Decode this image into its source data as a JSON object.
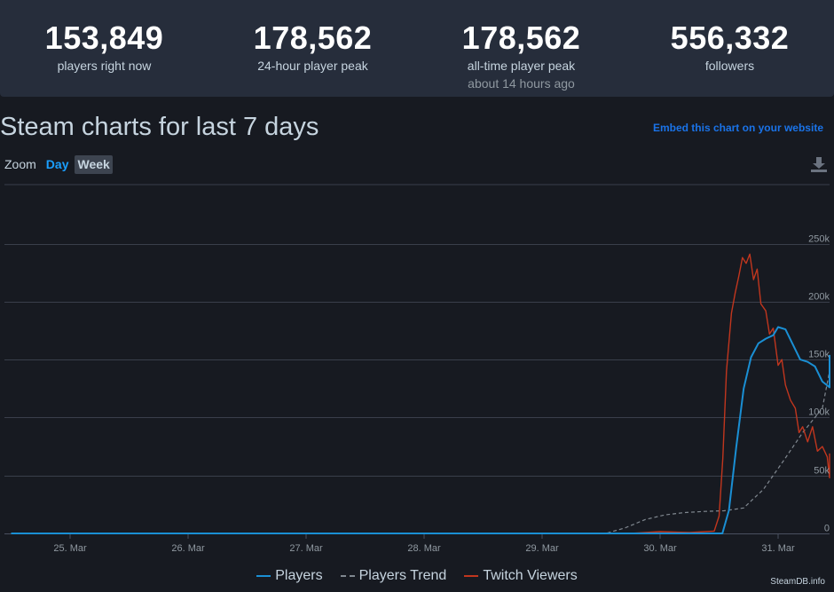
{
  "stats": [
    {
      "value": "153,849",
      "label": "players right now",
      "sub": ""
    },
    {
      "value": "178,562",
      "label": "24-hour player peak",
      "sub": ""
    },
    {
      "value": "178,562",
      "label": "all-time player peak",
      "sub": "about 14 hours ago"
    },
    {
      "value": "556,332",
      "label": "followers",
      "sub": ""
    }
  ],
  "chart_title": "Steam charts for last 7 days",
  "embed_link": "Embed this chart on your website",
  "zoom": {
    "label": "Zoom",
    "day": "Day",
    "week": "Week",
    "selected": "Week"
  },
  "credit": "SteamDB.info",
  "colors": {
    "players": "#1a8fd4",
    "trend": "#808890",
    "twitch": "#c1361e",
    "gridline": "#3a3f4b",
    "axis_text": "#8f98a0"
  },
  "chart_data": {
    "type": "line",
    "x_type": "datetime",
    "x_ticks": [
      "25. Mar",
      "26. Mar",
      "27. Mar",
      "28. Mar",
      "29. Mar",
      "30. Mar",
      "31. Mar"
    ],
    "y_ticks": [
      "0",
      "50k",
      "100k",
      "150k",
      "200k",
      "250k"
    ],
    "ylim": [
      0,
      300000
    ],
    "grid": true,
    "legend_position": "bottom",
    "series": [
      {
        "name": "Players",
        "points": [
          [
            "2024-03-24 12:00",
            0
          ],
          [
            "2024-03-30 12:00",
            0
          ],
          [
            "2024-03-30 12:40",
            0
          ],
          [
            "2024-03-30 14:00",
            20000
          ],
          [
            "2024-03-30 15:30",
            75000
          ],
          [
            "2024-03-30 17:00",
            125000
          ],
          [
            "2024-03-30 18:30",
            152000
          ],
          [
            "2024-03-30 20:00",
            164000
          ],
          [
            "2024-03-30 21:30",
            168000
          ],
          [
            "2024-03-30 23:00",
            171000
          ],
          [
            "2024-03-31 00:00",
            178000
          ],
          [
            "2024-03-31 01:30",
            176000
          ],
          [
            "2024-03-31 03:00",
            163000
          ],
          [
            "2024-03-31 04:30",
            150000
          ],
          [
            "2024-03-31 06:00",
            148000
          ],
          [
            "2024-03-31 07:30",
            144000
          ],
          [
            "2024-03-31 09:00",
            131000
          ],
          [
            "2024-03-31 10:30",
            126000
          ],
          [
            "2024-03-31 12:00",
            133000
          ],
          [
            "2024-03-31 13:30",
            146000
          ],
          [
            "2024-03-31 14:20",
            154000
          ]
        ]
      },
      {
        "name": "Players Trend",
        "points": [
          [
            "2024-03-24 12:00",
            0
          ],
          [
            "2024-03-29 13:00",
            0
          ],
          [
            "2024-03-29 17:00",
            5000
          ],
          [
            "2024-03-29 21:00",
            12000
          ],
          [
            "2024-03-30 01:00",
            16000
          ],
          [
            "2024-03-30 05:00",
            18000
          ],
          [
            "2024-03-30 09:00",
            19000
          ],
          [
            "2024-03-30 13:00",
            19500
          ],
          [
            "2024-03-30 17:00",
            22000
          ],
          [
            "2024-03-30 21:00",
            38000
          ],
          [
            "2024-03-31 01:00",
            62000
          ],
          [
            "2024-03-31 05:00",
            87000
          ],
          [
            "2024-03-31 09:00",
            108000
          ],
          [
            "2024-03-31 14:20",
            140000
          ]
        ]
      },
      {
        "name": "Twitch Viewers",
        "points": [
          [
            "2024-03-24 12:00",
            0
          ],
          [
            "2024-03-29 18:00",
            0
          ],
          [
            "2024-03-30 00:00",
            1500
          ],
          [
            "2024-03-30 06:00",
            800
          ],
          [
            "2024-03-30 11:00",
            2000
          ],
          [
            "2024-03-30 12:00",
            15000
          ],
          [
            "2024-03-30 12:45",
            65000
          ],
          [
            "2024-03-30 13:30",
            140000
          ],
          [
            "2024-03-30 14:30",
            190000
          ],
          [
            "2024-03-30 15:15",
            207000
          ],
          [
            "2024-03-30 16:00",
            222000
          ],
          [
            "2024-03-30 16:45",
            238000
          ],
          [
            "2024-03-30 17:30",
            233000
          ],
          [
            "2024-03-30 18:15",
            241000
          ],
          [
            "2024-03-30 19:00",
            219000
          ],
          [
            "2024-03-30 19:45",
            228000
          ],
          [
            "2024-03-30 20:30",
            198000
          ],
          [
            "2024-03-30 21:30",
            192000
          ],
          [
            "2024-03-30 22:15",
            172000
          ],
          [
            "2024-03-30 23:00",
            177000
          ],
          [
            "2024-03-31 00:00",
            145000
          ],
          [
            "2024-03-31 00:45",
            150000
          ],
          [
            "2024-03-31 01:30",
            128000
          ],
          [
            "2024-03-31 02:30",
            115000
          ],
          [
            "2024-03-31 03:30",
            108000
          ],
          [
            "2024-03-31 04:15",
            87000
          ],
          [
            "2024-03-31 05:00",
            92000
          ],
          [
            "2024-03-31 06:00",
            79000
          ],
          [
            "2024-03-31 07:00",
            92000
          ],
          [
            "2024-03-31 08:00",
            71000
          ],
          [
            "2024-03-31 09:00",
            75000
          ],
          [
            "2024-03-31 10:00",
            66000
          ],
          [
            "2024-03-31 11:00",
            48000
          ],
          [
            "2024-03-31 11:45",
            62000
          ],
          [
            "2024-03-31 12:30",
            52000
          ],
          [
            "2024-03-31 13:15",
            65000
          ],
          [
            "2024-03-31 14:20",
            69000
          ]
        ]
      }
    ]
  }
}
